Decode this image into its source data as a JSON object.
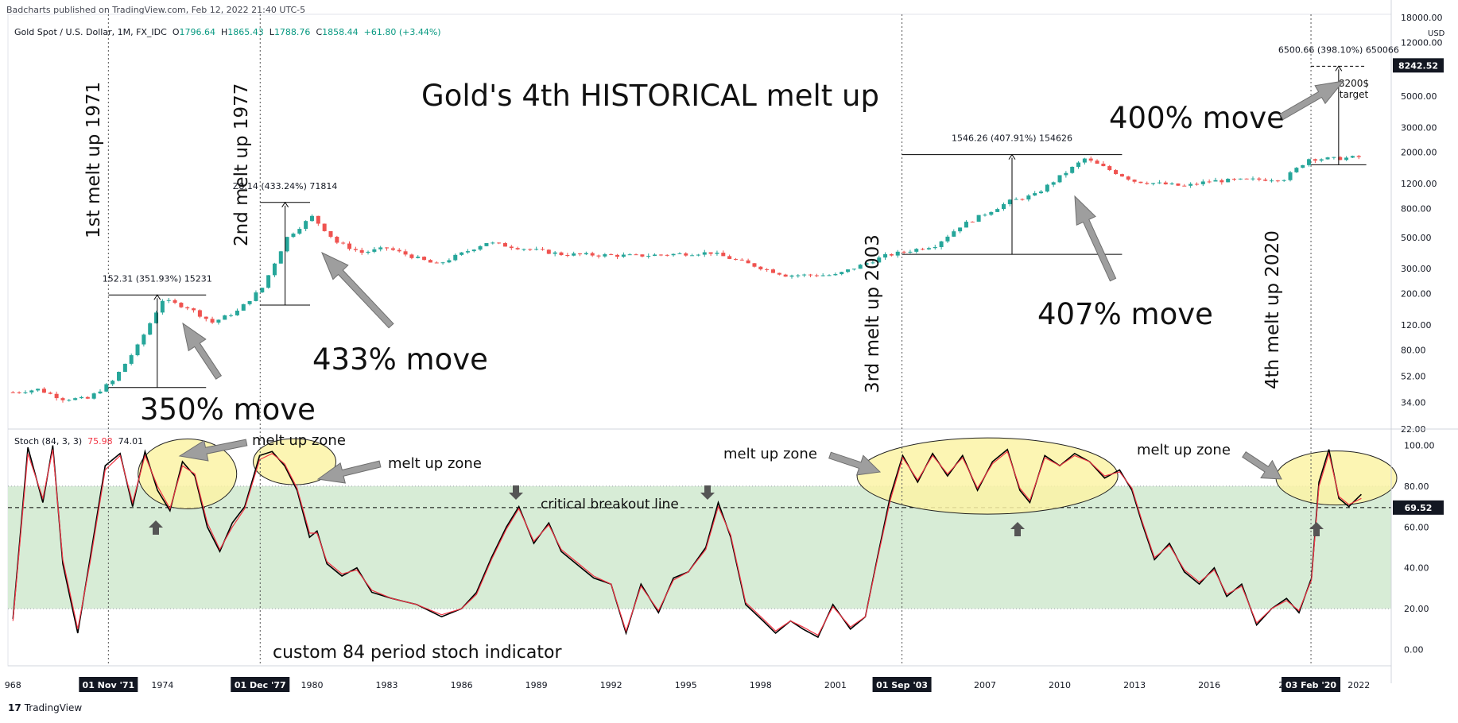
{
  "header": {
    "published": "Badcharts published on TradingView.com, Feb 12, 2022 21:40 UTC-5"
  },
  "legend": {
    "symbol": "Gold Spot / U.S. Dollar, 1M, FX_IDC",
    "open_label": "O",
    "open": "1796.64",
    "high_label": "H",
    "high": "1865.43",
    "low_label": "L",
    "low": "1788.76",
    "close_label": "C",
    "close": "1858.44",
    "change": "+61.80 (+3.44%)"
  },
  "stoch_legend": {
    "name": "Stoch (84, 3, 3)",
    "k_value": "75.98",
    "d_value": "74.01"
  },
  "footer": {
    "logo": "17",
    "brand": "TradingView"
  },
  "colors": {
    "up": "#26a69a",
    "down": "#ef5350",
    "stoch_k": "#000000",
    "stoch_d": "#f23645",
    "band_fill": "#d7ecd6",
    "zone_fill": "#fbf3a6",
    "arrow_fill": "#9e9e9e",
    "axis_text": "#131722"
  },
  "chart_data": [
    {
      "type": "candlestick",
      "title": "Gold's 4th HISTORICAL melt up",
      "series": [
        {
          "name": "Gold Spot / U.S. Dollar",
          "x": [
            1968,
            1969,
            1970,
            1971,
            1972,
            1973,
            1974,
            1975,
            1976,
            1977,
            1978,
            1979,
            1980,
            1981,
            1982,
            1983,
            1985,
            1987,
            1988,
            1990,
            1993,
            1996,
            1999,
            2001,
            2003,
            2005,
            2006,
            2008,
            2009,
            2011,
            2013,
            2015,
            2016,
            2019,
            2020,
            2021,
            2022
          ],
          "values": [
            40,
            42,
            36,
            36,
            48,
            85,
            180,
            160,
            125,
            150,
            220,
            500,
            700,
            460,
            390,
            420,
            320,
            460,
            430,
            380,
            370,
            390,
            270,
            270,
            370,
            440,
            600,
            900,
            1000,
            1800,
            1250,
            1150,
            1250,
            1300,
            1800,
            1800,
            1850
          ]
        }
      ],
      "y_axis": {
        "scale": "log",
        "ylim": [
          22,
          18000
        ],
        "unit": "USD",
        "ticks": [
          "18000.00",
          "12000.00",
          "8000.00",
          "5000.00",
          "3000.00",
          "2000.00",
          "1200.00",
          "800.00",
          "500.00",
          "300.00",
          "200.00",
          "120.00",
          "80.00",
          "52.00",
          "34.00",
          "22.00"
        ]
      },
      "x_axis": {
        "ticks": [
          "968",
          "1974",
          "1980",
          "1983",
          "1986",
          "1989",
          "1992",
          "1995",
          "1998",
          "2001",
          "2007",
          "2010",
          "2013",
          "2016",
          "20",
          "2022"
        ],
        "ticks_x": [
          1968,
          1974,
          1980,
          1983,
          1986,
          1989,
          1992,
          1995,
          1998,
          2001,
          2007,
          2010,
          2013,
          2016,
          2019,
          2022
        ],
        "highlighted": [
          {
            "label": "01 Nov '71",
            "x": 1971.83
          },
          {
            "label": "01 Dec '77",
            "x": 1977.92
          },
          {
            "label": "01 Sep '03",
            "x": 2003.67
          },
          {
            "label": "03 Feb '20",
            "x": 2020.08
          }
        ]
      },
      "price_labels": [
        {
          "value": "8242.52",
          "y": 8242.52
        }
      ],
      "annotations": [
        {
          "text": "1st melt up 1971",
          "x": 1971.83
        },
        {
          "text": "2nd melt up 1977",
          "x": 1977.92
        },
        {
          "text": "3rd melt up 2003",
          "x": 2003.67
        },
        {
          "text": "4th melt up 2020",
          "x": 2020.08
        },
        {
          "text": "350% move"
        },
        {
          "text": "433% move"
        },
        {
          "text": "407% move"
        },
        {
          "text": "400% move"
        },
        {
          "text": "8200$"
        },
        {
          "text": "target"
        }
      ],
      "measurements": [
        {
          "text": "152.31 (351.93%) 15231",
          "x_from": 1971.83,
          "x_to": 1975.75,
          "y_from": 43.28,
          "y_to": 195.59
        },
        {
          "text": "Z8.14 (433.24%) 71814",
          "x_from": 1977.92,
          "x_to": 1979.92,
          "y_from": 165.77,
          "y_to": 883.91
        },
        {
          "text": "1546.26 (407.91%) 154626",
          "x_from": 2003.67,
          "x_to": 2012.5,
          "y_from": 379.07,
          "y_to": 1925.33
        },
        {
          "text": "6500.66 (398.10%) 650066",
          "x_from": 2020.08,
          "x_to": 2022.3,
          "y_from": 1632.9,
          "y_to": 8133.56
        }
      ]
    },
    {
      "type": "line",
      "title": "Stoch (84, 3, 3)",
      "series": [
        {
          "name": "K",
          "x": [
            1968,
            1968.6,
            1969.2,
            1969.6,
            1970,
            1970.6,
            1971.1,
            1971.7,
            1972.3,
            1972.8,
            1973.3,
            1973.8,
            1974.3,
            1974.8,
            1975.3,
            1975.8,
            1976.3,
            1976.8,
            1977.3,
            1977.9,
            1978.4,
            1978.9,
            1979.4,
            1979.9,
            1980.2,
            1980.6,
            1981.2,
            1981.8,
            1982.4,
            1983.2,
            1984.2,
            1985.2,
            1986,
            1986.6,
            1987.2,
            1987.8,
            1988.3,
            1988.9,
            1989.5,
            1990,
            1990.6,
            1991.3,
            1992,
            1992.6,
            1993.2,
            1993.9,
            1994.5,
            1995.1,
            1995.8,
            1996.3,
            1996.8,
            1997.4,
            1998.1,
            1998.6,
            1999.2,
            1999.7,
            2000.3,
            2000.9,
            2001.6,
            2002.2,
            2002.7,
            2003.2,
            2003.7,
            2004.3,
            2004.9,
            2005.5,
            2006.1,
            2006.7,
            2007.3,
            2007.9,
            2008.4,
            2008.8,
            2009.4,
            2010,
            2010.6,
            2011.2,
            2011.8,
            2012.4,
            2012.9,
            2013.3,
            2013.8,
            2014.4,
            2015,
            2015.6,
            2016.2,
            2016.7,
            2017.3,
            2017.9,
            2018.5,
            2019.1,
            2019.6,
            2020.1,
            2020.4,
            2020.8,
            2021.2,
            2021.6,
            2022.1
          ],
          "values": [
            15,
            99,
            72,
            100,
            42,
            8,
            45,
            90,
            96,
            70,
            97,
            78,
            68,
            92,
            85,
            60,
            48,
            62,
            70,
            95,
            97,
            90,
            78,
            55,
            58,
            42,
            36,
            40,
            28,
            25,
            22,
            16,
            20,
            28,
            45,
            60,
            70,
            52,
            62,
            48,
            42,
            35,
            32,
            8,
            32,
            18,
            35,
            38,
            50,
            72,
            55,
            22,
            14,
            8,
            14,
            10,
            6,
            22,
            10,
            16,
            46,
            75,
            95,
            82,
            96,
            85,
            95,
            78,
            92,
            98,
            78,
            72,
            95,
            90,
            96,
            92,
            84,
            88,
            78,
            62,
            44,
            52,
            38,
            32,
            40,
            26,
            32,
            12,
            20,
            25,
            18,
            35,
            82,
            98,
            74,
            70,
            76
          ]
        },
        {
          "name": "D",
          "x": [
            1968,
            1968.6,
            1969.2,
            1969.6,
            1970,
            1970.6,
            1971.1,
            1971.7,
            1972.3,
            1972.8,
            1973.3,
            1973.8,
            1974.3,
            1974.8,
            1975.3,
            1975.8,
            1976.3,
            1976.8,
            1977.3,
            1977.9,
            1978.4,
            1978.9,
            1979.4,
            1979.9,
            1980.2,
            1980.6,
            1981.2,
            1981.8,
            1982.4,
            1983.2,
            1984.2,
            1985.2,
            1986,
            1986.6,
            1987.2,
            1987.8,
            1988.3,
            1988.9,
            1989.5,
            1990,
            1990.6,
            1991.3,
            1992,
            1992.6,
            1993.2,
            1993.9,
            1994.5,
            1995.1,
            1995.8,
            1996.3,
            1996.8,
            1997.4,
            1998.1,
            1998.6,
            1999.2,
            1999.7,
            2000.3,
            2000.9,
            2001.6,
            2002.2,
            2002.7,
            2003.2,
            2003.7,
            2004.3,
            2004.9,
            2005.5,
            2006.1,
            2006.7,
            2007.3,
            2007.9,
            2008.4,
            2008.8,
            2009.4,
            2010,
            2010.6,
            2011.2,
            2011.8,
            2012.4,
            2012.9,
            2013.3,
            2013.8,
            2014.4,
            2015,
            2015.6,
            2016.2,
            2016.7,
            2017.3,
            2017.9,
            2018.5,
            2019.1,
            2019.6,
            2020.1,
            2020.4,
            2020.8,
            2021.2,
            2021.6,
            2022.1
          ],
          "values": [
            14,
            96,
            74,
            98,
            44,
            10,
            43,
            88,
            95,
            72,
            95,
            80,
            69,
            90,
            86,
            62,
            49,
            60,
            69,
            93,
            96,
            91,
            79,
            57,
            57,
            43,
            37,
            39,
            29,
            25,
            22,
            17,
            20,
            27,
            44,
            59,
            69,
            53,
            61,
            49,
            43,
            36,
            32,
            9,
            31,
            19,
            34,
            38,
            49,
            70,
            56,
            23,
            15,
            9,
            14,
            11,
            7,
            21,
            11,
            16,
            45,
            73,
            94,
            83,
            95,
            86,
            94,
            79,
            91,
            97,
            79,
            73,
            94,
            90,
            95,
            92,
            85,
            87,
            79,
            63,
            45,
            51,
            39,
            33,
            39,
            27,
            31,
            13,
            20,
            24,
            19,
            34,
            80,
            96,
            75,
            71,
            74
          ]
        }
      ],
      "y_axis": {
        "ylim": [
          -8,
          108
        ],
        "ticks": [
          "100.00",
          "80.00",
          "60.00",
          "40.00",
          "20.00",
          "0.00"
        ]
      },
      "band": {
        "lower": 20,
        "upper": 80
      },
      "critical_line": 69.52,
      "price_labels": [
        {
          "value": "69.52",
          "y": 69.52
        }
      ],
      "annotations": [
        {
          "text": "critical breakout line"
        },
        {
          "text": "custom 84 period stoch indicator"
        },
        {
          "text": "melt up zone"
        },
        {
          "text": "melt up zone"
        },
        {
          "text": "melt up zone"
        },
        {
          "text": "melt up zone"
        }
      ]
    }
  ]
}
